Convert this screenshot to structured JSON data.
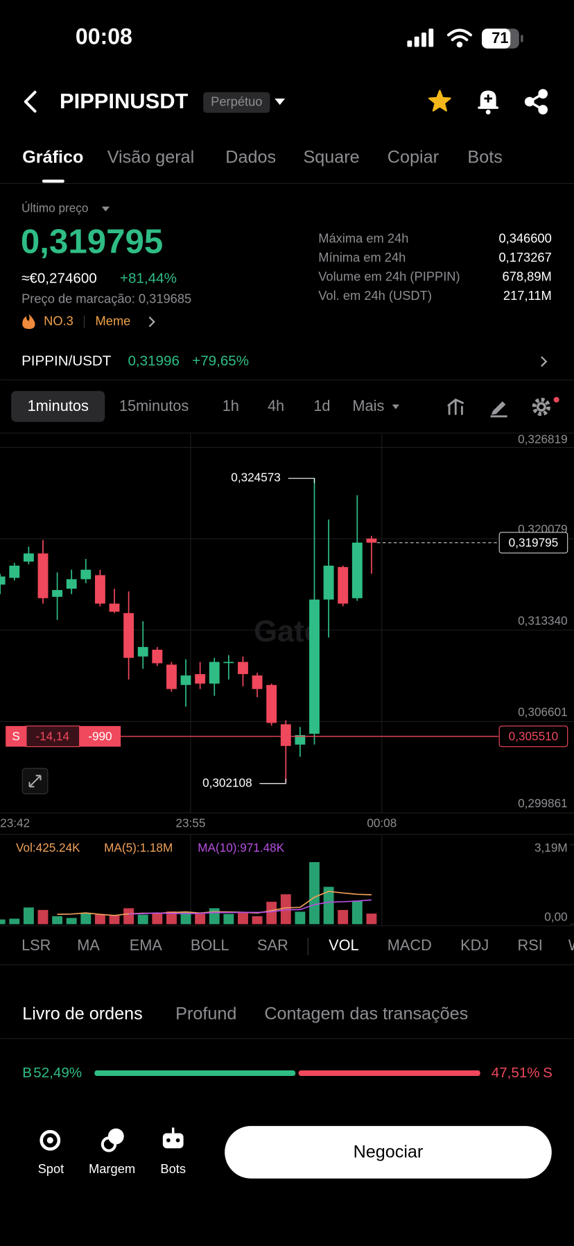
{
  "status_bar": {
    "time": "00:08",
    "battery": "71"
  },
  "header": {
    "symbol": "PIPPINUSDT",
    "contract_type": "Perpétuo"
  },
  "tabs": [
    "Gráfico",
    "Visão geral",
    "Dados",
    "Square",
    "Copiar",
    "Bots"
  ],
  "price_panel": {
    "last_price_label": "Último preço",
    "last_price": "0,319795",
    "eur_price": "≈€0,274600",
    "change": "+81,44%",
    "mark_price": "Preço de marcação: 0,319685",
    "rank": "NO.3",
    "tag": "Meme",
    "stats": [
      {
        "label": "Máxima em 24h",
        "value": "0,346600"
      },
      {
        "label": "Mínima em 24h",
        "value": "0,173267"
      },
      {
        "label": "Volume em 24h (PIPPIN)",
        "value": "678,89M"
      },
      {
        "label": "Vol. em 24h (USDT)",
        "value": "217,11M"
      }
    ]
  },
  "spot_link": {
    "pair": "PIPPIN/USDT",
    "price": "0,31996",
    "change": "+79,65%"
  },
  "intervals": [
    "1minutos",
    "15minutos",
    "1h",
    "4h",
    "1d",
    "Mais"
  ],
  "price_chart": {
    "type": "candlestick",
    "watermark": "Gate",
    "ylim": [
      0.299861,
      0.32782
    ],
    "yticks": [
      {
        "value": 0.326819,
        "label": "0,326819"
      },
      {
        "value": 0.320079,
        "label": "0,320079"
      },
      {
        "value": 0.31334,
        "label": "0,313340"
      },
      {
        "value": 0.306601,
        "label": "0,306601"
      },
      {
        "value": 0.299861,
        "label": "0,299861"
      }
    ],
    "time_labels": [
      "23:42",
      "23:55",
      "00:08"
    ],
    "candles": [
      [
        0.3167,
        0.3175,
        0.316,
        0.3173
      ],
      [
        0.3172,
        0.3183,
        0.317,
        0.3181
      ],
      [
        0.3184,
        0.3195,
        0.3182,
        0.319
      ],
      [
        0.319,
        0.32,
        0.3153,
        0.3157
      ],
      [
        0.3158,
        0.3176,
        0.3141,
        0.3163
      ],
      [
        0.3164,
        0.3178,
        0.316,
        0.3171
      ],
      [
        0.3171,
        0.3186,
        0.3168,
        0.3178
      ],
      [
        0.3174,
        0.3178,
        0.3151,
        0.3153
      ],
      [
        0.3153,
        0.3164,
        0.3146,
        0.3147
      ],
      [
        0.3146,
        0.3162,
        0.3097,
        0.3113
      ],
      [
        0.3114,
        0.314,
        0.3105,
        0.3121
      ],
      [
        0.3119,
        0.3121,
        0.3107,
        0.3109
      ],
      [
        0.3108,
        0.311,
        0.3088,
        0.309
      ],
      [
        0.3093,
        0.3112,
        0.3077,
        0.31
      ],
      [
        0.3101,
        0.311,
        0.309,
        0.3094
      ],
      [
        0.3094,
        0.3113,
        0.3085,
        0.311
      ],
      [
        0.311,
        0.3115,
        0.3097,
        0.311
      ],
      [
        0.311,
        0.3114,
        0.3092,
        0.3101
      ],
      [
        0.31,
        0.3102,
        0.3084,
        0.309
      ],
      [
        0.3093,
        0.3094,
        0.3063,
        0.3065
      ],
      [
        0.3064,
        0.3067,
        0.302108,
        0.3048
      ],
      [
        0.3049,
        0.3062,
        0.304,
        0.3056
      ],
      [
        0.3057,
        0.324573,
        0.3049,
        0.3156
      ],
      [
        0.3156,
        0.3215,
        0.3128,
        0.3181
      ],
      [
        0.318,
        0.3181,
        0.3151,
        0.3153
      ],
      [
        0.3157,
        0.3233,
        0.3155,
        0.3198
      ],
      [
        0.3201,
        0.3203,
        0.3175,
        0.319795
      ]
    ],
    "high_label": "0,324573",
    "low_label": "0,302108",
    "last_price": {
      "value": 0.319795,
      "label": "0,319795"
    },
    "position": {
      "side": "S",
      "pnl": "-14,14",
      "quantity": "-990",
      "price": {
        "value": 0.30551,
        "label": "0,305510"
      }
    }
  },
  "volume_chart": {
    "legend": [
      "Vol:425.24K",
      "MA(5):1.18M",
      "MA(10):971.48K"
    ],
    "ylim": [
      0,
      3190000
    ],
    "yticks": [
      {
        "value": 3190000,
        "label": "3,19M"
      },
      {
        "value": 0,
        "label": "0,00"
      }
    ],
    "volumes": [
      190000,
      220000,
      670000,
      570000,
      320000,
      250000,
      450000,
      380000,
      350000,
      640000,
      380000,
      450000,
      510000,
      480000,
      410000,
      640000,
      410000,
      450000,
      320000,
      900000,
      1200000,
      500000,
      2490000,
      1500000,
      570000,
      940000,
      425240
    ],
    "ma5": [
      null,
      null,
      null,
      null,
      394000,
      406000,
      452000,
      394000,
      350000,
      414000,
      440000,
      440000,
      466000,
      492000,
      446000,
      498000,
      490000,
      478000,
      446000,
      544000,
      656000,
      674000,
      1082000,
      1318000,
      1252000,
      1200000,
      1180000
    ],
    "ma10": [
      null,
      null,
      null,
      null,
      null,
      null,
      null,
      null,
      null,
      406000,
      425000,
      448000,
      432000,
      423000,
      432000,
      471000,
      467000,
      474000,
      471000,
      497000,
      579000,
      584000,
      782000,
      884000,
      900000,
      930000,
      971480
    ]
  },
  "indicators": [
    "LSR",
    "MA",
    "EMA",
    "BOLL",
    "SAR",
    "VOL",
    "MACD",
    "KDJ",
    "RSI",
    "WR"
  ],
  "order_book": {
    "tabs": [
      "Livro de ordens",
      "Profund",
      "Contagem das transações"
    ],
    "buy_side": "B",
    "buy_ratio": {
      "value": 52.49,
      "label": "52,49%"
    },
    "sell_ratio": {
      "value": 47.51,
      "label": "47,51%"
    },
    "sell_side": "S"
  },
  "bottom_nav": [
    "Spot",
    "Margem",
    "Bots"
  ],
  "trade_button": "Negociar"
}
